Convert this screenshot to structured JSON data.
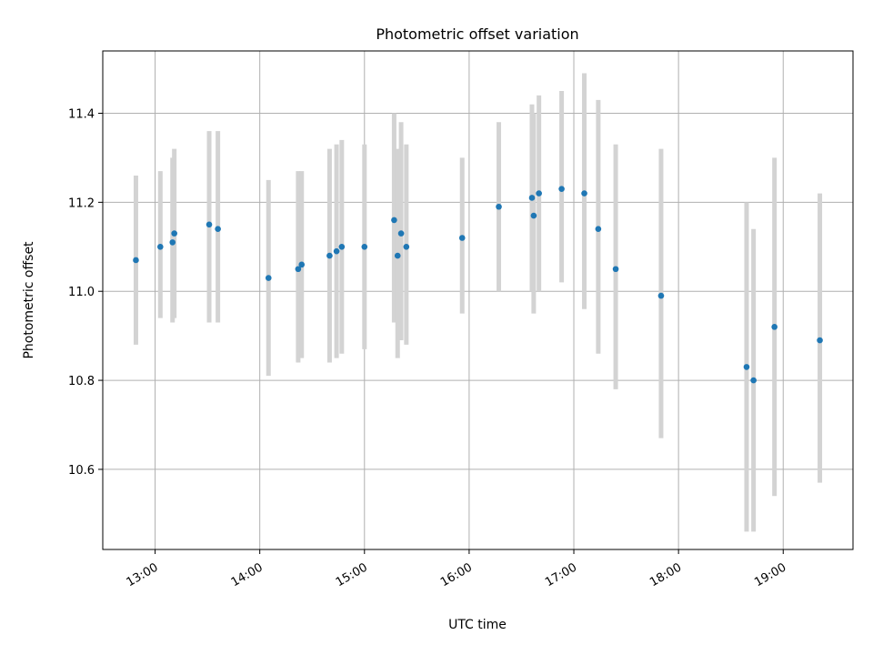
{
  "chart_data": {
    "type": "scatter",
    "title": "Photometric offset variation",
    "xlabel": "UTC time",
    "ylabel": "Photometric offset",
    "xlim": [
      "12:30",
      "19:40"
    ],
    "ylim": [
      10.42,
      11.54
    ],
    "x_ticks": [
      "13:00",
      "14:00",
      "15:00",
      "16:00",
      "17:00",
      "18:00",
      "19:00"
    ],
    "y_ticks": [
      "10.6",
      "10.8",
      "11.0",
      "11.2",
      "11.4"
    ],
    "grid": true,
    "colors": {
      "point": "#1f77b4",
      "errorbar": "#d3d3d3",
      "grid": "#b0b0b0"
    },
    "series": [
      {
        "points": [
          {
            "x": "12:49",
            "y": 11.07,
            "ylow": 10.88,
            "yhigh": 11.26
          },
          {
            "x": "13:03",
            "y": 11.1,
            "ylow": 10.94,
            "yhigh": 11.27
          },
          {
            "x": "13:10",
            "y": 11.11,
            "ylow": 10.93,
            "yhigh": 11.3
          },
          {
            "x": "13:11",
            "y": 11.13,
            "ylow": 10.94,
            "yhigh": 11.32
          },
          {
            "x": "13:31",
            "y": 11.15,
            "ylow": 10.93,
            "yhigh": 11.36
          },
          {
            "x": "13:36",
            "y": 11.14,
            "ylow": 10.93,
            "yhigh": 11.36
          },
          {
            "x": "14:05",
            "y": 11.03,
            "ylow": 10.81,
            "yhigh": 11.25
          },
          {
            "x": "14:22",
            "y": 11.05,
            "ylow": 10.84,
            "yhigh": 11.27
          },
          {
            "x": "14:24",
            "y": 11.06,
            "ylow": 10.85,
            "yhigh": 11.27
          },
          {
            "x": "14:40",
            "y": 11.08,
            "ylow": 10.84,
            "yhigh": 11.32
          },
          {
            "x": "14:44",
            "y": 11.09,
            "ylow": 10.85,
            "yhigh": 11.33
          },
          {
            "x": "14:47",
            "y": 11.1,
            "ylow": 10.86,
            "yhigh": 11.34
          },
          {
            "x": "15:00",
            "y": 11.1,
            "ylow": 10.87,
            "yhigh": 11.33
          },
          {
            "x": "15:17",
            "y": 11.16,
            "ylow": 10.93,
            "yhigh": 11.4
          },
          {
            "x": "15:19",
            "y": 11.08,
            "ylow": 10.85,
            "yhigh": 11.32
          },
          {
            "x": "15:21",
            "y": 11.13,
            "ylow": 10.89,
            "yhigh": 11.38
          },
          {
            "x": "15:24",
            "y": 11.1,
            "ylow": 10.88,
            "yhigh": 11.33
          },
          {
            "x": "15:56",
            "y": 11.12,
            "ylow": 10.95,
            "yhigh": 11.3
          },
          {
            "x": "16:17",
            "y": 11.19,
            "ylow": 11.0,
            "yhigh": 11.38
          },
          {
            "x": "16:36",
            "y": 11.21,
            "ylow": 11.0,
            "yhigh": 11.42
          },
          {
            "x": "16:37",
            "y": 11.17,
            "ylow": 10.95,
            "yhigh": 11.4
          },
          {
            "x": "16:40",
            "y": 11.22,
            "ylow": 11.0,
            "yhigh": 11.44
          },
          {
            "x": "16:53",
            "y": 11.23,
            "ylow": 11.02,
            "yhigh": 11.45
          },
          {
            "x": "17:06",
            "y": 11.22,
            "ylow": 10.96,
            "yhigh": 11.49
          },
          {
            "x": "17:14",
            "y": 11.14,
            "ylow": 10.86,
            "yhigh": 11.43
          },
          {
            "x": "17:24",
            "y": 11.05,
            "ylow": 10.78,
            "yhigh": 11.33
          },
          {
            "x": "17:50",
            "y": 10.99,
            "ylow": 10.67,
            "yhigh": 11.32
          },
          {
            "x": "18:39",
            "y": 10.83,
            "ylow": 10.46,
            "yhigh": 11.2
          },
          {
            "x": "18:43",
            "y": 10.8,
            "ylow": 10.46,
            "yhigh": 11.14
          },
          {
            "x": "18:55",
            "y": 10.92,
            "ylow": 10.54,
            "yhigh": 11.3
          },
          {
            "x": "19:21",
            "y": 10.89,
            "ylow": 10.57,
            "yhigh": 11.22
          }
        ]
      }
    ]
  }
}
